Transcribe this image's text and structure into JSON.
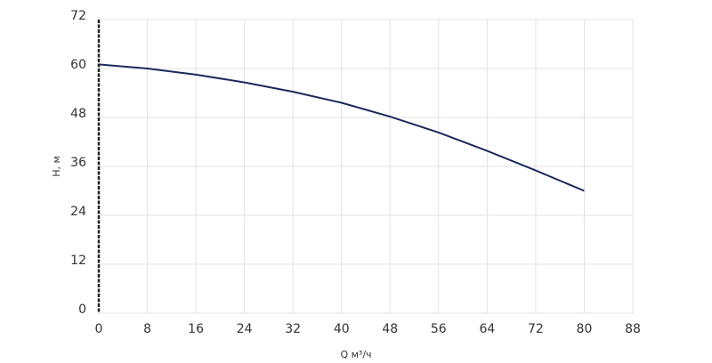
{
  "chart_data": {
    "type": "line",
    "x_label": "Q м³/ч",
    "y_label": "H, м",
    "x": [
      0,
      8,
      16,
      24,
      32,
      40,
      48,
      56,
      64,
      72,
      80
    ],
    "values": [
      61,
      60,
      58.5,
      56.6,
      54.3,
      51.6,
      48.2,
      44.3,
      39.8,
      35,
      30
    ],
    "color": "#1b2a5c",
    "xlim": [
      0,
      88
    ],
    "xticks": [
      0,
      8,
      16,
      24,
      32,
      40,
      48,
      56,
      64,
      72,
      80,
      88
    ],
    "ylim": [
      0,
      72
    ],
    "yticks": [
      0,
      12,
      24,
      36,
      48,
      60,
      72
    ],
    "grid": true
  }
}
